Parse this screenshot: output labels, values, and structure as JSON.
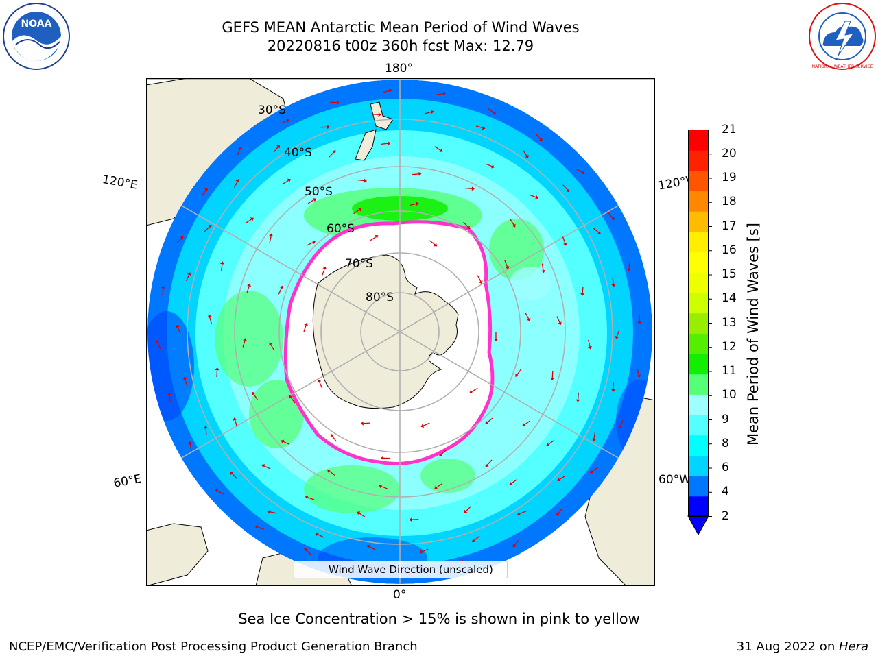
{
  "header": {
    "title_line1": "GEFS MEAN Antarctic Mean Period of Wind Waves",
    "title_line2": "20220816 t00z 360h fcst   Max: 12.79"
  },
  "logos": {
    "left": "NOAA",
    "right": "NATIONAL WEATHER SERVICE"
  },
  "map": {
    "projection": "south polar stereographic",
    "longitude_labels": [
      "180°",
      "120°E",
      "120°W",
      "60°E",
      "60°W",
      "0°"
    ],
    "latitude_labels": [
      "30°S",
      "40°S",
      "50°S",
      "60°S",
      "70°S",
      "80°S"
    ],
    "legend_label": "Wind Wave Direction (unscaled)",
    "colors": {
      "land": "#efecd9",
      "sea_ice_edge": "#ff33cc",
      "arrows": "#e00000",
      "grid": "#b0b0b0"
    }
  },
  "colorbar": {
    "label": "Mean Period of Wind Waves [s]",
    "ticks": [
      "21",
      "20",
      "19",
      "18",
      "17",
      "16",
      "15",
      "14",
      "13",
      "12",
      "11",
      "10",
      "9",
      "8",
      "6",
      "4",
      "2"
    ],
    "colors": [
      "#0000ff",
      "#0077ff",
      "#00d4ff",
      "#00ffff",
      "#53ffff",
      "#9fffff",
      "#55ff77",
      "#11ee00",
      "#55ee00",
      "#99ee00",
      "#ccff00",
      "#eeff00",
      "#ffff00",
      "#ffee00",
      "#ffbb00",
      "#ff8800",
      "#ff5500",
      "#ff2200",
      "#ff0000"
    ]
  },
  "notes": {
    "sea_ice": "Sea Ice Concentration > 15% is shown in pink to yellow",
    "footer_left": "NCEP/EMC/Verification Post Processing Product Generation Branch",
    "footer_right_date": "31 Aug 2022 on ",
    "footer_right_host": "Hera"
  }
}
